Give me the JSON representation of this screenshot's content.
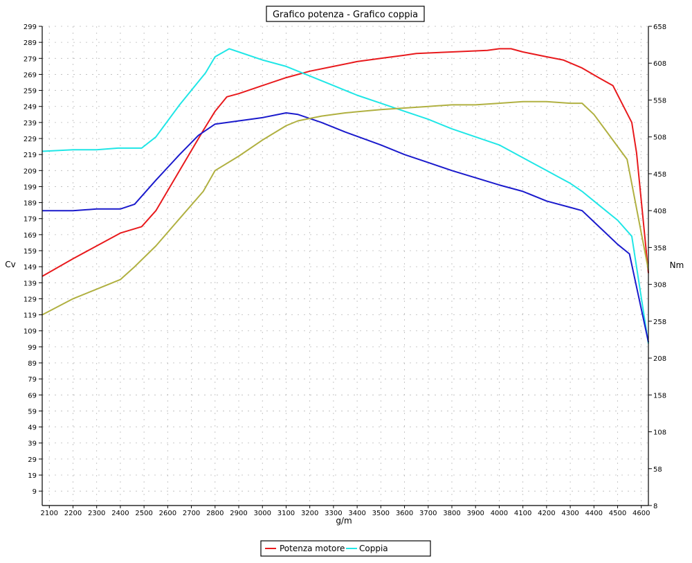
{
  "chart_data": {
    "type": "line",
    "title": "Grafico potenza - Grafico coppia",
    "xlabel": "g/m",
    "ylabel_left": "Cv",
    "ylabel_right": "Nm",
    "xlim": [
      2070,
      4630
    ],
    "ylim_left": [
      0,
      299
    ],
    "ylim_right": [
      8,
      658
    ],
    "grid": true,
    "x_ticks": [
      2100,
      2200,
      2300,
      2400,
      2500,
      2600,
      2700,
      2800,
      2900,
      3000,
      3100,
      3200,
      3300,
      3400,
      3500,
      3600,
      3700,
      3800,
      3900,
      4000,
      4100,
      4200,
      4300,
      4400,
      4500,
      4600
    ],
    "y_ticks_left": [
      9,
      19,
      29,
      39,
      49,
      59,
      69,
      79,
      89,
      99,
      109,
      119,
      129,
      139,
      149,
      159,
      169,
      179,
      189,
      199,
      209,
      219,
      229,
      239,
      249,
      259,
      269,
      279,
      289,
      299
    ],
    "y_ticks_right": [
      8,
      58,
      108,
      158,
      208,
      258,
      308,
      358,
      408,
      458,
      508,
      558,
      608,
      658
    ],
    "legend": {
      "position": "bottom-center",
      "entries": [
        "Potenza motore",
        "Coppia"
      ]
    },
    "series": [
      {
        "name": "Potenza motore",
        "axis": "left",
        "color": "#e8191c",
        "x": [
          2070,
          2200,
          2300,
          2400,
          2490,
          2550,
          2650,
          2750,
          2800,
          2850,
          2900,
          3000,
          3100,
          3200,
          3300,
          3400,
          3500,
          3600,
          3650,
          3800,
          3950,
          4000,
          4050,
          4100,
          4200,
          4270,
          4350,
          4420,
          4480,
          4560,
          4580,
          4630
        ],
        "y": [
          143,
          154,
          162,
          170,
          174,
          184,
          209,
          234,
          246,
          255,
          257,
          262,
          267,
          271,
          274,
          277,
          279,
          281,
          282,
          283,
          284,
          285,
          285,
          283,
          280,
          278,
          273,
          267,
          262,
          239,
          220,
          145
        ]
      },
      {
        "name": "Coppia",
        "axis": "left",
        "color": "#1fe6e6",
        "x": [
          2070,
          2200,
          2300,
          2390,
          2490,
          2550,
          2650,
          2760,
          2800,
          2860,
          2900,
          3000,
          3100,
          3200,
          3300,
          3400,
          3500,
          3600,
          3700,
          3800,
          3900,
          4000,
          4050,
          4100,
          4200,
          4300,
          4350,
          4400,
          4450,
          4500,
          4560,
          4630
        ],
        "y": [
          221,
          222,
          222,
          223,
          223,
          230,
          250,
          270,
          280,
          285,
          283,
          278,
          274,
          268,
          262,
          256,
          251,
          246,
          241,
          235,
          230,
          225,
          221,
          217,
          209,
          201,
          196,
          190,
          184,
          178,
          168,
          101
        ]
      },
      {
        "name": "",
        "axis": "left",
        "color": "#1a1acc",
        "x": [
          2070,
          2200,
          2300,
          2400,
          2460,
          2550,
          2650,
          2730,
          2800,
          3000,
          3100,
          3150,
          3250,
          3350,
          3500,
          3600,
          3700,
          3800,
          4000,
          4100,
          4200,
          4300,
          4350,
          4400,
          4500,
          4550,
          4630
        ],
        "y": [
          184,
          184,
          185,
          185,
          188,
          203,
          219,
          231,
          238,
          242,
          245,
          244,
          239,
          233,
          225,
          219,
          214,
          209,
          200,
          196,
          190,
          186,
          184,
          177,
          163,
          157,
          102
        ]
      },
      {
        "name": "",
        "axis": "left",
        "color": "#b0b040",
        "x": [
          2070,
          2200,
          2300,
          2400,
          2460,
          2550,
          2650,
          2750,
          2800,
          2900,
          3000,
          3100,
          3150,
          3250,
          3350,
          3500,
          3600,
          3700,
          3800,
          3900,
          4000,
          4100,
          4200,
          4300,
          4350,
          4400,
          4450,
          4500,
          4540,
          4630
        ],
        "y": [
          119,
          129,
          135,
          141,
          149,
          162,
          179,
          196,
          209,
          218,
          228,
          237,
          240,
          243,
          245,
          247,
          248,
          249,
          250,
          250,
          251,
          252,
          252,
          251,
          251,
          244,
          234,
          224,
          216,
          147
        ]
      }
    ]
  }
}
